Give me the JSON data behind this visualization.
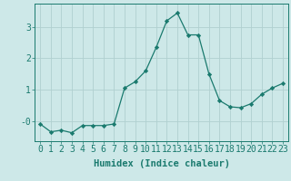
{
  "x": [
    0,
    1,
    2,
    3,
    4,
    5,
    6,
    7,
    8,
    9,
    10,
    11,
    12,
    13,
    14,
    15,
    16,
    17,
    18,
    19,
    20,
    21,
    22,
    23
  ],
  "y": [
    -0.1,
    -0.35,
    -0.3,
    -0.38,
    -0.15,
    -0.15,
    -0.15,
    -0.1,
    1.05,
    1.25,
    1.6,
    2.35,
    3.2,
    3.45,
    2.75,
    2.75,
    1.5,
    0.65,
    0.45,
    0.42,
    0.55,
    0.85,
    1.05,
    1.2
  ],
  "line_color": "#1a7a6e",
  "marker": "D",
  "marker_size": 2.2,
  "bg_color": "#cde8e8",
  "grid_color": "#b0d0d0",
  "xlabel": "Humidex (Indice chaleur)",
  "yticks": [
    0,
    1,
    2,
    3
  ],
  "ytick_labels": [
    "-0",
    "1",
    "2",
    "3"
  ],
  "ylim": [
    -0.65,
    3.75
  ],
  "xlim": [
    -0.5,
    23.5
  ],
  "xlabel_fontsize": 7.5,
  "tick_fontsize": 7
}
